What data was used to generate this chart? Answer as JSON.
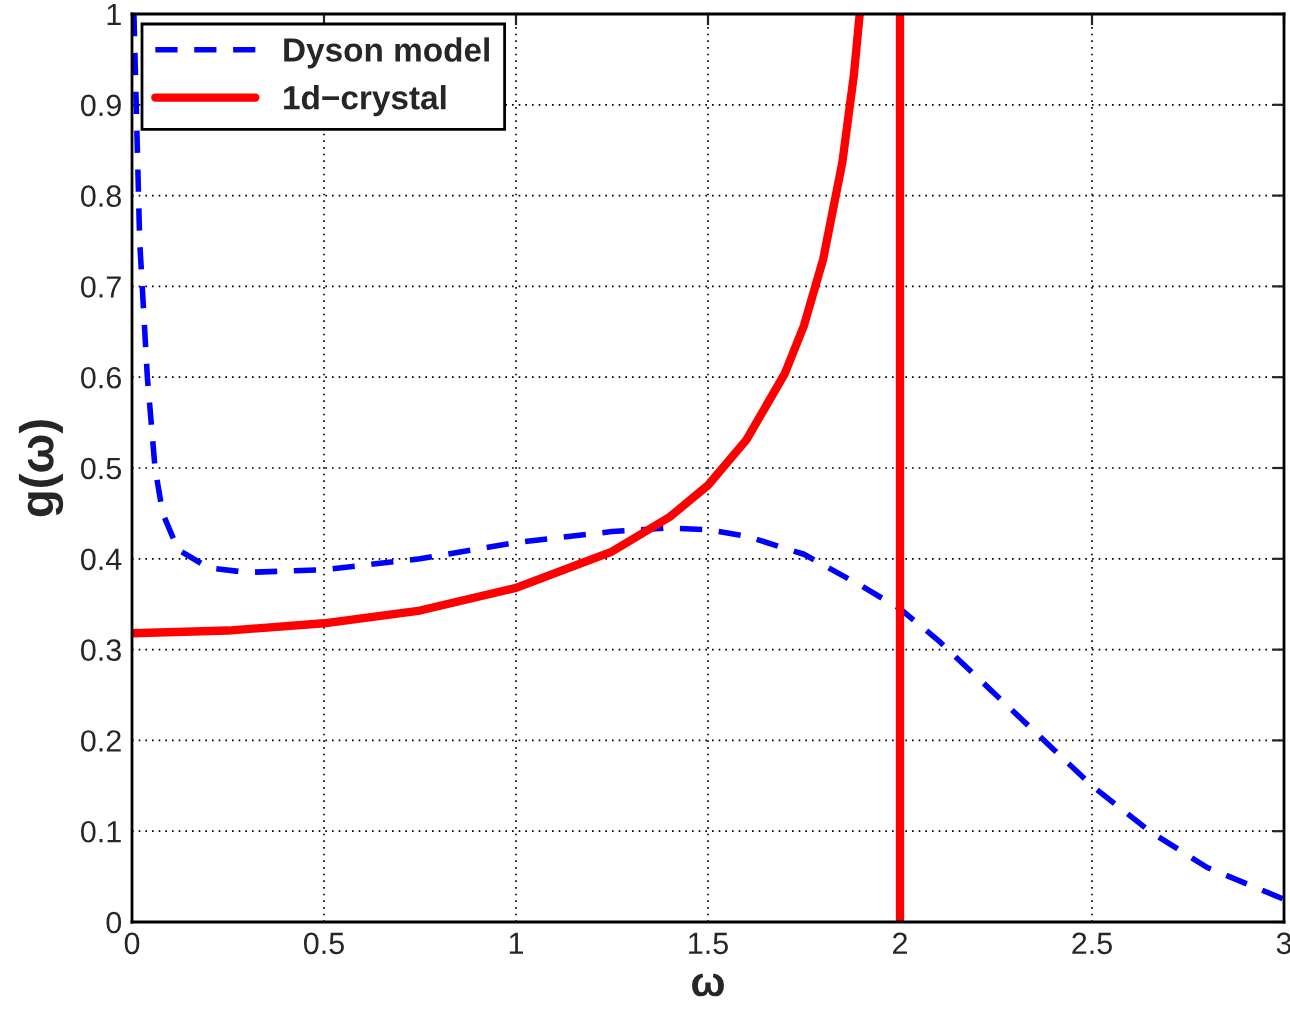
{
  "chart_data": {
    "type": "line",
    "xlabel": "ω",
    "ylabel": "g(ω)",
    "xlim": [
      0,
      3
    ],
    "ylim": [
      0,
      1
    ],
    "xticks": [
      0,
      0.5,
      1,
      1.5,
      2,
      2.5,
      3
    ],
    "yticks": [
      0,
      0.1,
      0.2,
      0.3,
      0.4,
      0.5,
      0.6,
      0.7,
      0.8,
      0.9,
      1
    ],
    "grid": true,
    "legend": "top left",
    "series": [
      {
        "name": "Dyson model",
        "color": "#0000ff",
        "line_style": "dashed",
        "x": [
          0.005,
          0.02,
          0.04,
          0.06,
          0.08,
          0.12,
          0.2,
          0.3,
          0.5,
          0.75,
          1.0,
          1.25,
          1.4,
          1.5,
          1.6,
          1.75,
          1.9,
          2.0,
          2.1,
          2.25,
          2.4,
          2.5,
          2.65,
          2.8,
          3.0
        ],
        "values": [
          1.0,
          0.75,
          0.6,
          0.5,
          0.45,
          0.41,
          0.39,
          0.385,
          0.388,
          0.4,
          0.418,
          0.43,
          0.434,
          0.432,
          0.425,
          0.405,
          0.37,
          0.345,
          0.31,
          0.25,
          0.19,
          0.15,
          0.1,
          0.06,
          0.025
        ]
      },
      {
        "name": "1d−crystal",
        "color": "#ff0000",
        "line_style": "solid",
        "x": [
          0,
          0.25,
          0.5,
          0.75,
          1.0,
          1.25,
          1.4,
          1.5,
          1.6,
          1.7,
          1.75,
          1.8,
          1.85,
          1.88,
          1.895,
          1.95,
          2,
          2
        ],
        "values": [
          0.318,
          0.321,
          0.329,
          0.343,
          0.368,
          0.408,
          0.446,
          0.481,
          0.531,
          0.604,
          0.657,
          0.73,
          0.837,
          0.933,
          1.0,
          null,
          1.0,
          0
        ]
      }
    ]
  }
}
